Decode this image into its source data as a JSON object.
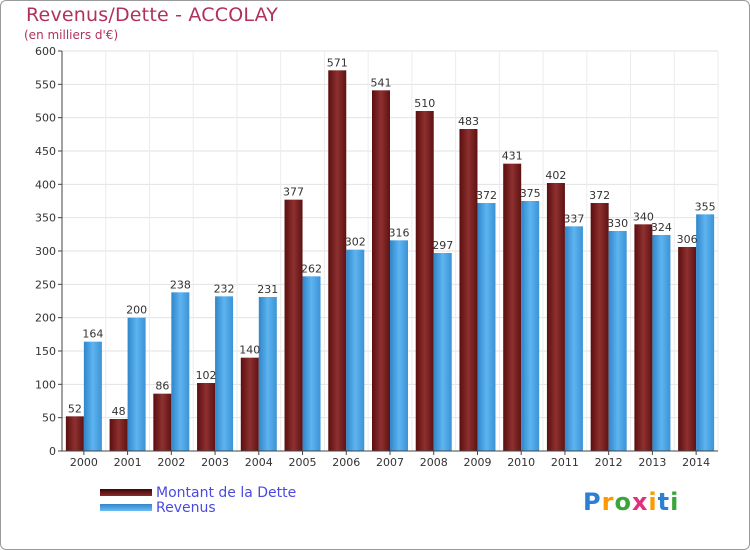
{
  "title": "Revenus/Dette - ACCOLAY",
  "subtitle": "(en milliers d'€)",
  "logo": {
    "letters": [
      "P",
      "r",
      "o",
      "x",
      "i",
      "t",
      "i"
    ],
    "colors": [
      "#2b7fd4",
      "#ff9900",
      "#3aa63a",
      "#e0307a",
      "#ff9900",
      "#2b7fd4",
      "#3aa63a"
    ]
  },
  "chart_data": {
    "type": "bar",
    "title": "Revenus/Dette - ACCOLAY",
    "ylabel": "(en milliers d'€)",
    "xlabel": "",
    "ylim": [
      0,
      600
    ],
    "yticks": [
      0,
      50,
      100,
      150,
      200,
      250,
      300,
      350,
      400,
      450,
      500,
      550,
      600
    ],
    "grid": true,
    "legend_position": "bottom-left",
    "categories": [
      "2000",
      "2001",
      "2002",
      "2003",
      "2004",
      "2005",
      "2006",
      "2007",
      "2008",
      "2009",
      "2010",
      "2011",
      "2012",
      "2013",
      "2014"
    ],
    "series": [
      {
        "name": "Montant de la Dette",
        "color": "#8b2a2a",
        "values": [
          52,
          48,
          86,
          102,
          140,
          377,
          571,
          541,
          510,
          483,
          431,
          402,
          372,
          340,
          306
        ]
      },
      {
        "name": "Revenus",
        "color": "#4ea6e6",
        "values": [
          164,
          200,
          238,
          232,
          231,
          262,
          302,
          316,
          297,
          372,
          375,
          337,
          330,
          324,
          355
        ]
      }
    ]
  }
}
